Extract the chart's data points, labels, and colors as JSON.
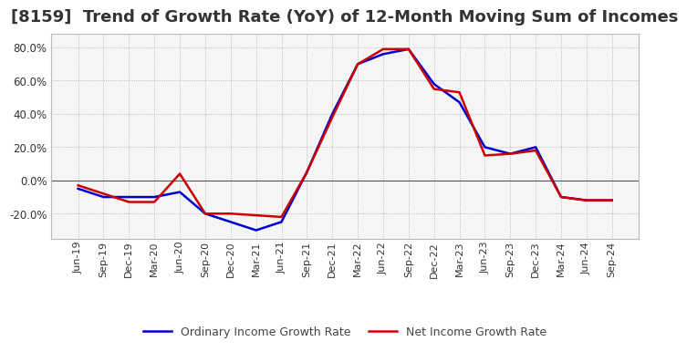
{
  "title": "[8159]  Trend of Growth Rate (YoY) of 12-Month Moving Sum of Incomes",
  "title_fontsize": 13,
  "ylim": [
    -35,
    88
  ],
  "yticks": [
    -20,
    0,
    20,
    40,
    60,
    80
  ],
  "background_color": "#ffffff",
  "plot_bg_color": "#f5f5f5",
  "grid_color": "#aaaaaa",
  "legend": [
    "Ordinary Income Growth Rate",
    "Net Income Growth Rate"
  ],
  "legend_colors": [
    "#0000cc",
    "#cc0000"
  ],
  "dates": [
    "Jun-19",
    "Sep-19",
    "Dec-19",
    "Mar-20",
    "Jun-20",
    "Sep-20",
    "Dec-20",
    "Mar-21",
    "Jun-21",
    "Sep-21",
    "Dec-21",
    "Mar-22",
    "Jun-22",
    "Sep-22",
    "Dec-22",
    "Mar-23",
    "Jun-23",
    "Sep-23",
    "Dec-23",
    "Mar-24",
    "Jun-24",
    "Sep-24"
  ],
  "ordinary_income": [
    -5,
    -10,
    -10,
    -10,
    -7,
    -20,
    -25,
    -30,
    -25,
    5,
    40,
    70,
    76,
    79,
    58,
    47,
    20,
    16,
    20,
    -10,
    -12,
    -12
  ],
  "net_income": [
    -3,
    -8,
    -13,
    -13,
    4,
    -20,
    -20,
    -21,
    -22,
    5,
    38,
    70,
    79,
    79,
    55,
    53,
    15,
    16,
    18,
    -10,
    -12,
    -12
  ]
}
